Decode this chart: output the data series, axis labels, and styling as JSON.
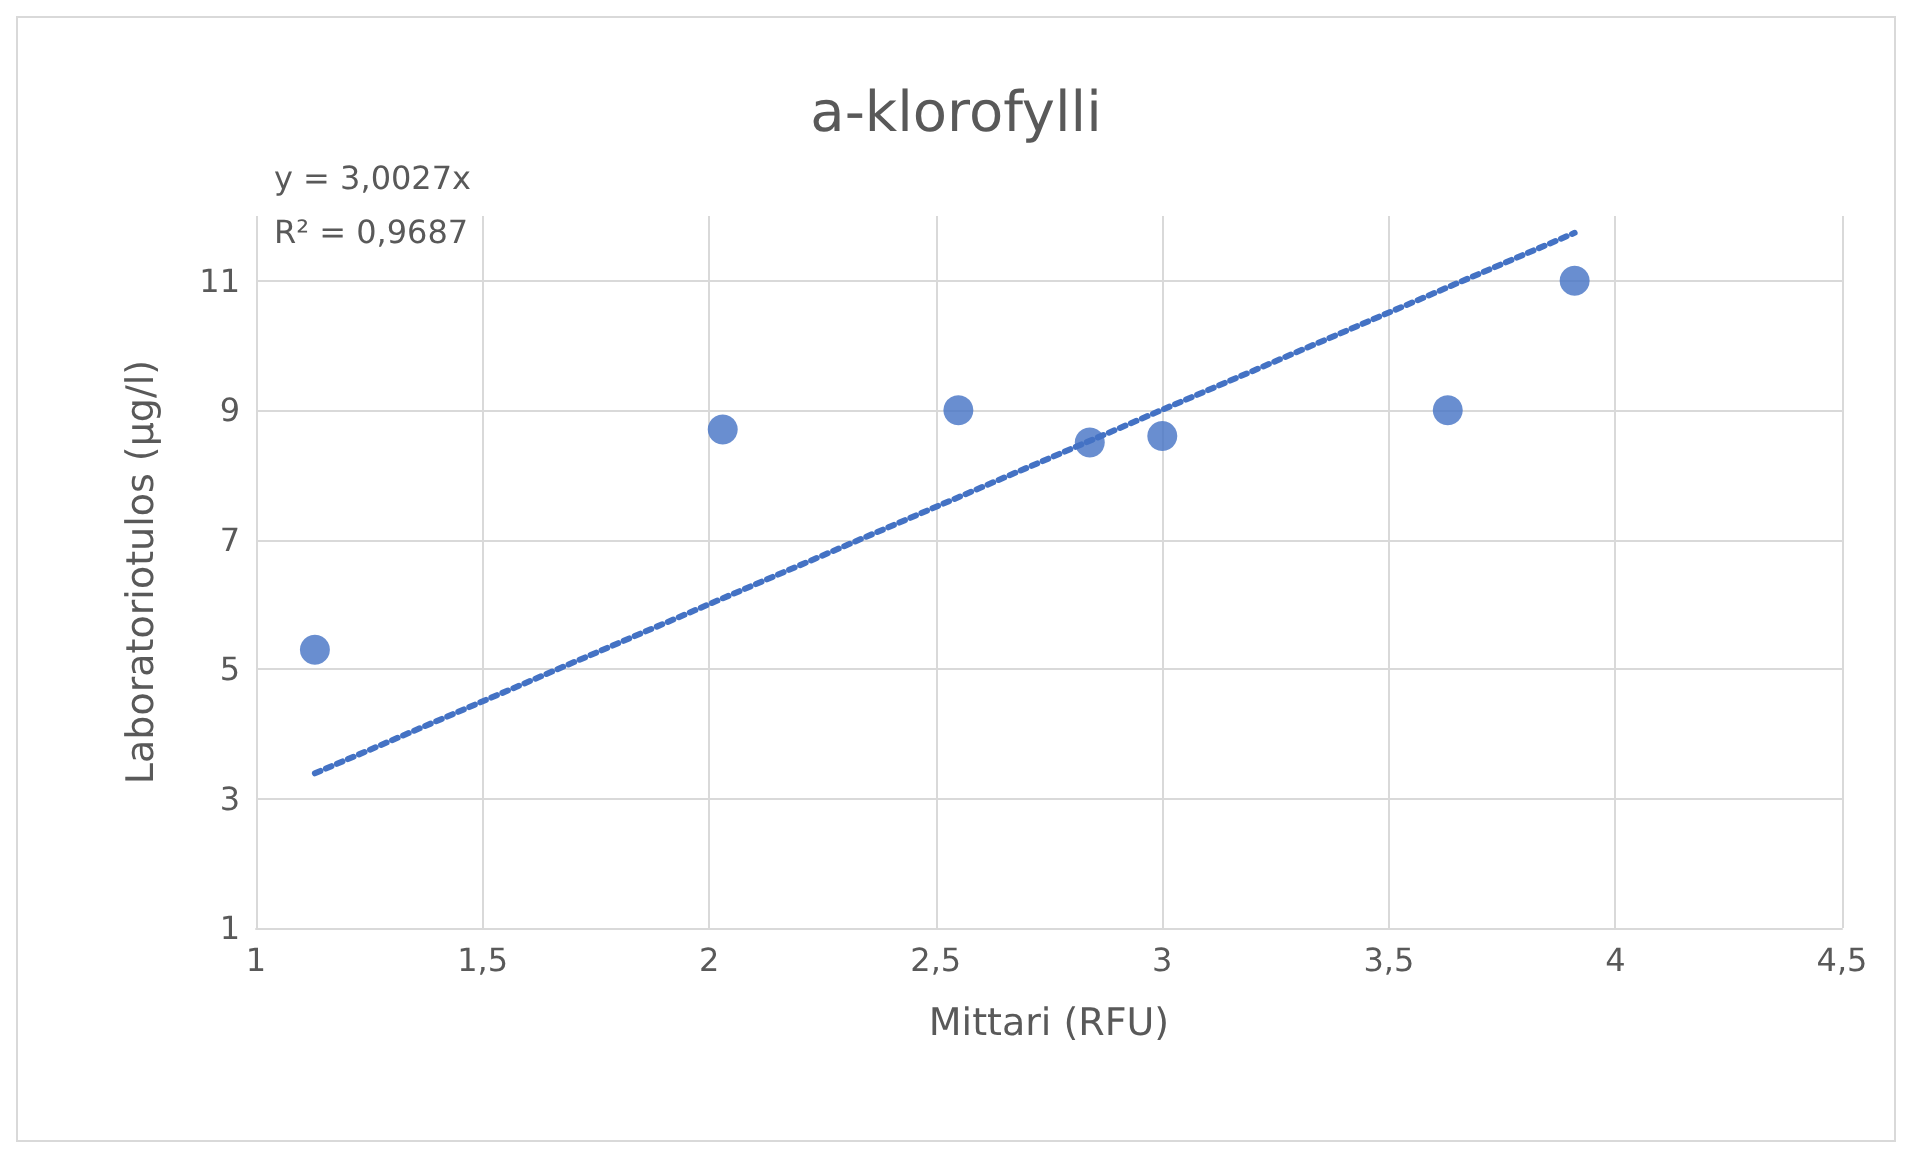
{
  "chart_data": {
    "type": "scatter",
    "title": "a-klorofylli",
    "xlabel": "Mittari (RFU)",
    "ylabel": "Laboratoriotulos (µg/l)",
    "annotations": [
      "y = 3,0027x",
      "R² = 0,9687"
    ],
    "series": [
      {
        "color": "#4472c4",
        "marker": "circle",
        "x": [
          1.13,
          2.03,
          2.55,
          2.84,
          3.0,
          3.63,
          3.91
        ],
        "values": [
          5.3,
          8.7,
          9.0,
          8.5,
          8.6,
          9.0,
          11.0
        ]
      },
      {
        "type": "line",
        "color": "#4472c4",
        "marker": "none",
        "line_style": "dotted",
        "x": [
          1.13,
          3.91
        ],
        "values": [
          3.39,
          11.74
        ]
      }
    ],
    "xlim": [
      1,
      4.5
    ],
    "xticks": [
      1,
      {
        "value": 1.5,
        "label": "1,5"
      },
      2,
      {
        "value": 2.5,
        "label": "2,5"
      },
      3,
      {
        "value": 3.5,
        "label": "3,5"
      },
      4,
      {
        "value": 4.5,
        "label": "4,5"
      }
    ],
    "ylim": [
      1,
      12
    ],
    "yticks": [
      1,
      3,
      5,
      7,
      9,
      11
    ],
    "grid": true
  }
}
